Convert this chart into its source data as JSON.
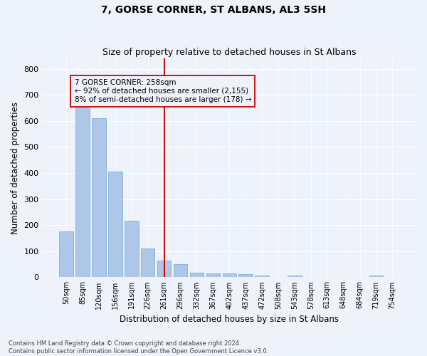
{
  "title": "7, GORSE CORNER, ST ALBANS, AL3 5SH",
  "subtitle": "Size of property relative to detached houses in St Albans",
  "xlabel_bottom": "Distribution of detached houses by size in St Albans",
  "ylabel": "Number of detached properties",
  "footnote": "Contains HM Land Registry data © Crown copyright and database right 2024.\nContains public sector information licensed under the Open Government Licence v3.0.",
  "bar_labels": [
    "50sqm",
    "85sqm",
    "120sqm",
    "156sqm",
    "191sqm",
    "226sqm",
    "261sqm",
    "296sqm",
    "332sqm",
    "367sqm",
    "402sqm",
    "437sqm",
    "472sqm",
    "508sqm",
    "543sqm",
    "578sqm",
    "613sqm",
    "648sqm",
    "684sqm",
    "719sqm",
    "754sqm"
  ],
  "bar_values": [
    175,
    660,
    610,
    405,
    218,
    110,
    65,
    50,
    18,
    15,
    15,
    12,
    8,
    0,
    8,
    0,
    0,
    0,
    0,
    8,
    0
  ],
  "bar_color": "#aec6e8",
  "bar_edgecolor": "#7fb0d8",
  "vline_x": 6,
  "vline_color": "#cc0000",
  "annotation_text": "7 GORSE CORNER: 258sqm\n← 92% of detached houses are smaller (2,155)\n8% of semi-detached houses are larger (178) →",
  "annotation_box_color": "#cc0000",
  "ylim": [
    0,
    840
  ],
  "yticks": [
    0,
    100,
    200,
    300,
    400,
    500,
    600,
    700,
    800
  ],
  "bg_color": "#edf2fb",
  "grid_color": "#ffffff",
  "title_fontsize": 10,
  "subtitle_fontsize": 9,
  "footnote_fontsize": 6.0
}
